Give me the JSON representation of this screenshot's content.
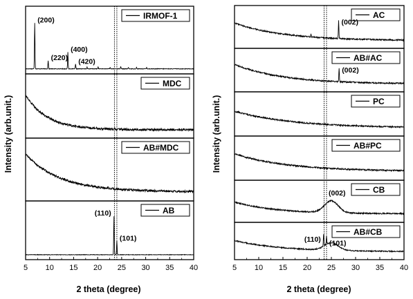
{
  "chart_data": [
    {
      "type": "line",
      "xlabel": "2 theta (degree)",
      "ylabel": "Intensity (arb.unit.)",
      "xlim": [
        5,
        40
      ],
      "xticks": [
        5,
        10,
        15,
        20,
        25,
        30,
        35,
        40
      ],
      "reference_lines_x": [
        23.5,
        24.0
      ],
      "panels": [
        {
          "legend": "IRMOF-1",
          "peaks": [
            {
              "x": 6.9,
              "y": 1.0,
              "label": "(200)"
            },
            {
              "x": 9.7,
              "y": 0.18,
              "label": "(220)"
            },
            {
              "x": 13.8,
              "y": 0.36,
              "label": "(400)"
            },
            {
              "x": 15.4,
              "y": 0.1,
              "label": "(420)"
            },
            {
              "x": 17.8,
              "y": 0.04,
              "label": ""
            },
            {
              "x": 20.1,
              "y": 0.04,
              "label": ""
            },
            {
              "x": 22.6,
              "y": 0.03,
              "label": ""
            },
            {
              "x": 24.8,
              "y": 0.05,
              "label": ""
            },
            {
              "x": 26.4,
              "y": 0.03,
              "label": ""
            },
            {
              "x": 28.1,
              "y": 0.03,
              "label": ""
            },
            {
              "x": 30.2,
              "y": 0.03,
              "label": ""
            }
          ]
        },
        {
          "legend": "MDC",
          "shape": "decay",
          "start": 0.75,
          "end": 0.08,
          "rate": 0.22
        },
        {
          "legend": "AB#MDC",
          "shape": "decay",
          "start": 0.85,
          "end": 0.1,
          "rate": 0.14
        },
        {
          "legend": "AB",
          "peaks": [
            {
              "x": 23.4,
              "y": 1.0,
              "label": "(110)"
            },
            {
              "x": 24.0,
              "y": 0.35,
              "label": "(101)"
            }
          ]
        }
      ]
    },
    {
      "type": "line",
      "xlabel": "2 theta (degree)",
      "ylabel": "Intensity (arb.unit.)",
      "xlim": [
        5,
        40
      ],
      "xticks": [
        5,
        10,
        15,
        20,
        25,
        30,
        35,
        40
      ],
      "reference_lines_x": [
        23.5,
        24.0
      ],
      "panels": [
        {
          "legend": "AC",
          "shape": "decay",
          "start": 0.7,
          "end": 0.12,
          "rate": 0.1,
          "peaks": [
            {
              "x": 26.5,
              "y": 0.6,
              "label": "(002)"
            },
            {
              "x": 20.8,
              "y": 0.1,
              "label": ""
            }
          ]
        },
        {
          "legend": "AB#AC",
          "shape": "decay",
          "start": 0.75,
          "end": 0.12,
          "rate": 0.1,
          "peaks": [
            {
              "x": 26.6,
              "y": 0.45,
              "label": "(002)"
            }
          ]
        },
        {
          "legend": "PC",
          "shape": "decay",
          "start": 0.65,
          "end": 0.12,
          "rate": 0.08
        },
        {
          "legend": "AB#PC",
          "shape": "decay",
          "start": 0.7,
          "end": 0.15,
          "rate": 0.09
        },
        {
          "legend": "CB",
          "shape": "decay",
          "start": 0.55,
          "end": 0.15,
          "rate": 0.12,
          "humps": [
            {
              "x": 25.0,
              "height": 0.4,
              "width": 2.0,
              "label": "(002)"
            }
          ]
        },
        {
          "legend": "AB#CB",
          "shape": "decay",
          "start": 0.6,
          "end": 0.15,
          "rate": 0.1,
          "humps": [
            {
              "x": 25.0,
              "height": 0.3,
              "width": 2.0,
              "label": ""
            }
          ],
          "peaks": [
            {
              "x": 23.4,
              "y": 0.5,
              "label": "(110)"
            },
            {
              "x": 24.0,
              "y": 0.35,
              "label": "(101)"
            }
          ]
        }
      ]
    }
  ]
}
